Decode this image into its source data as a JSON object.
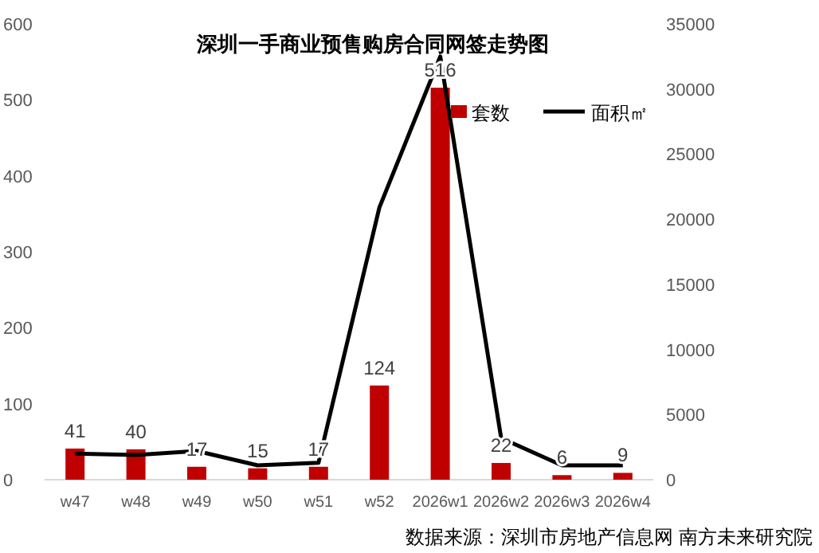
{
  "chart_data": {
    "type": "bar",
    "title": "深圳一手商业预售购房合同网签走势图",
    "categories": [
      "w47",
      "w48",
      "w49",
      "w50",
      "w51",
      "w52",
      "2026w1",
      "2026w2",
      "2026w3",
      "2026w4"
    ],
    "series": [
      {
        "name": "套数",
        "color": "#c00000",
        "values": [
          41,
          40,
          17,
          15,
          17,
          124,
          516,
          22,
          6,
          9
        ],
        "value_labels": [
          "41",
          "40",
          "17",
          "15",
          "17",
          "124",
          "516",
          "22",
          "6",
          "9"
        ]
      },
      {
        "name": "面积㎡",
        "type": "line",
        "axis": "y2",
        "color": "#000000",
        "values": [
          2000,
          1900,
          2200,
          1100,
          1300,
          20900,
          32500,
          3200,
          1100,
          1100
        ]
      }
    ],
    "ylim": [
      0,
      600
    ],
    "yticks": [
      0,
      100,
      200,
      300,
      400,
      500,
      600
    ],
    "y2lim": [
      0,
      35000
    ],
    "y2ticks": [
      0,
      5000,
      10000,
      15000,
      20000,
      25000,
      30000,
      35000
    ],
    "legend": "top right",
    "annotations": [
      "数据来源：深圳市房地产信息网 南方未来研究院"
    ]
  }
}
